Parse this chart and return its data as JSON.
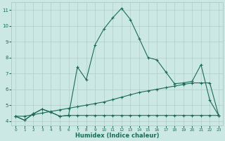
{
  "xlabel": "Humidex (Indice chaleur)",
  "x": [
    0,
    1,
    2,
    3,
    4,
    5,
    6,
    7,
    8,
    9,
    10,
    11,
    12,
    13,
    14,
    15,
    16,
    17,
    18,
    19,
    20,
    21,
    22,
    23
  ],
  "line1": [
    4.3,
    4.05,
    4.45,
    4.75,
    4.55,
    4.3,
    4.35,
    7.4,
    6.6,
    8.8,
    9.8,
    10.5,
    11.1,
    10.4,
    9.2,
    8.0,
    7.85,
    7.1,
    6.35,
    6.4,
    6.5,
    7.55,
    5.3,
    4.35
  ],
  "line2": [
    4.3,
    4.05,
    4.45,
    4.75,
    4.55,
    4.3,
    4.35,
    4.35,
    4.35,
    4.35,
    4.35,
    4.35,
    4.35,
    4.35,
    4.35,
    4.35,
    4.35,
    4.35,
    4.35,
    4.35,
    4.35,
    4.35,
    4.35,
    4.35
  ],
  "line3": [
    4.3,
    4.3,
    4.4,
    4.5,
    4.6,
    4.7,
    4.8,
    4.9,
    5.0,
    5.1,
    5.2,
    5.35,
    5.5,
    5.65,
    5.8,
    5.9,
    6.0,
    6.1,
    6.2,
    6.3,
    6.4,
    6.4,
    6.4,
    4.35
  ],
  "line_color": "#1a6b5a",
  "bg_color": "#cce8e4",
  "grid_color": "#b0ceca",
  "ylim": [
    3.7,
    11.5
  ],
  "xlim": [
    -0.5,
    23.5
  ],
  "yticks": [
    4,
    5,
    6,
    7,
    8,
    9,
    10,
    11
  ],
  "xticks": [
    0,
    1,
    2,
    3,
    4,
    5,
    6,
    7,
    8,
    9,
    10,
    11,
    12,
    13,
    14,
    15,
    16,
    17,
    18,
    19,
    20,
    21,
    22,
    23
  ]
}
